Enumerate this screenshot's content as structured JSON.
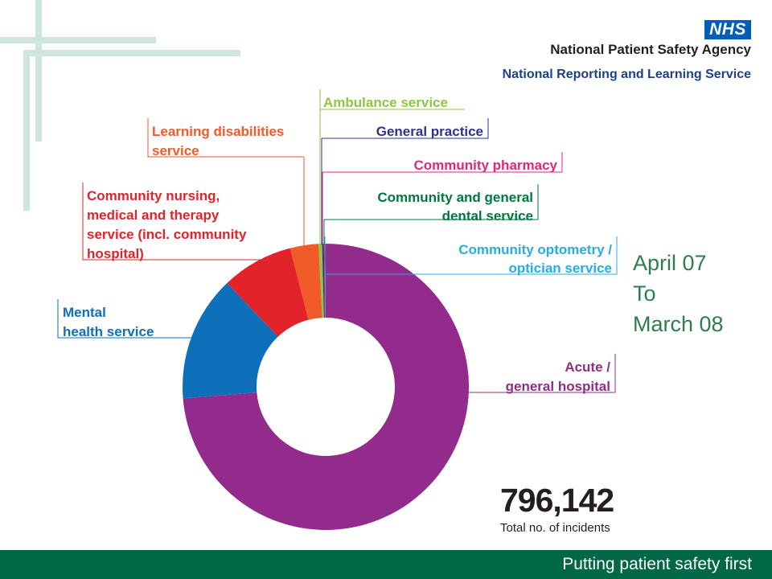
{
  "header": {
    "logo_text": "NHS",
    "agency_name": "National Patient Safety Agency",
    "service_name": "National Reporting and Learning Service"
  },
  "date_range": {
    "line1": "April 07",
    "line2": "To",
    "line3": "March 08"
  },
  "summary": {
    "total_value": "796,142",
    "total_caption": "Total no. of incidents"
  },
  "footer": {
    "slogan": "Putting patient safety first"
  },
  "colors": {
    "acute": "#922b8c",
    "mental_health": "#0e6fba",
    "community_nursing": "#e2232a",
    "learning_disabilities": "#f15a29",
    "ambulance": "#8dc63f",
    "general_practice": "#2e3192",
    "community_pharmacy": "#e0267b",
    "dental": "#00773d",
    "optometry": "#29abe2",
    "nhs_blue": "#005eb8",
    "footer_green": "#006747",
    "date_green": "#2e7d4f"
  },
  "chart_data": {
    "type": "pie",
    "style": "donut",
    "title": "",
    "total": 796142,
    "categories": [
      "Acute / general hospital",
      "Mental health service",
      "Community nursing, medical and therapy service (incl. community hospital)",
      "Learning disabilities service",
      "Ambulance service",
      "General practice",
      "Community pharmacy",
      "Community and general dental service",
      "Community optometry / optician service"
    ],
    "labels": [
      [
        "Acute /",
        "general hospital"
      ],
      [
        "Mental",
        "health service"
      ],
      [
        "Community nursing,",
        "medical and therapy",
        "service (incl. community",
        "hospital)"
      ],
      [
        "Learning disabilities",
        "service"
      ],
      [
        "Ambulance service"
      ],
      [
        "General practice"
      ],
      [
        "Community pharmacy"
      ],
      [
        "Community and general",
        "dental service"
      ],
      [
        "Community optometry /",
        "optician service"
      ]
    ],
    "values_percent": [
      73.7,
      14.2,
      8.1,
      3.2,
      0.4,
      0.2,
      0.1,
      0.05,
      0.05
    ],
    "colors": [
      "#922b8c",
      "#0e6fba",
      "#e2232a",
      "#f15a29",
      "#8dc63f",
      "#2e3192",
      "#e0267b",
      "#00773d",
      "#29abe2"
    ],
    "legend": "none"
  }
}
